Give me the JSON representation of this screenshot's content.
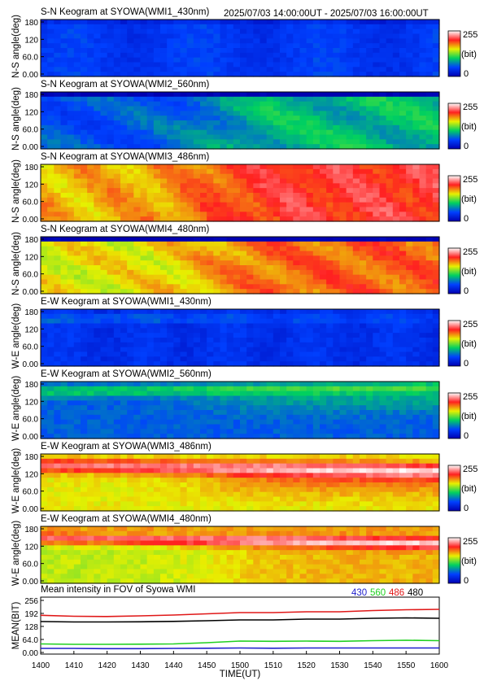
{
  "header": {
    "time_range": "2025/07/03 14:00:00UT - 2025/07/03 16:00:00UT"
  },
  "colorbar_labels": {
    "max": "255",
    "unit": "(bit)",
    "min": "0"
  },
  "keograms": [
    {
      "title": "S-N Keogram at SYOWA(WMI1_430nm)",
      "ylabel": "N-S angle(deg)",
      "yticks": [
        "180",
        "120",
        "60.0",
        "0.00"
      ]
    },
    {
      "title": "S-N Keogram at SYOWA(WMI2_560nm)",
      "ylabel": "N-S angle(deg)",
      "yticks": [
        "180",
        "120",
        "60.0",
        "0.00"
      ]
    },
    {
      "title": "S-N Keogram at SYOWA(WMI3_486nm)",
      "ylabel": "N-S angle(deg)",
      "yticks": [
        "180",
        "120",
        "60.0",
        "0.00"
      ]
    },
    {
      "title": "S-N Keogram at SYOWA(WMI4_480nm)",
      "ylabel": "N-S angle(deg)",
      "yticks": [
        "180",
        "120",
        "60.0",
        "0.00"
      ]
    },
    {
      "title": "E-W Keogram at SYOWA(WMI1_430nm)",
      "ylabel": "W-E angle(deg)",
      "yticks": [
        "180",
        "120",
        "60.0",
        "0.00"
      ]
    },
    {
      "title": "E-W Keogram at SYOWA(WMI2_560nm)",
      "ylabel": "W-E angle(deg)",
      "yticks": [
        "180",
        "120",
        "60.0",
        "0.00"
      ]
    },
    {
      "title": "E-W Keogram at SYOWA(WMI3_486nm)",
      "ylabel": "W-E angle(deg)",
      "yticks": [
        "180",
        "120",
        "60.0",
        "0.00"
      ]
    },
    {
      "title": "E-W Keogram at SYOWA(WMI4_480nm)",
      "ylabel": "W-E angle(deg)",
      "yticks": [
        "180",
        "120",
        "60.0",
        "0.00"
      ]
    }
  ],
  "chart_data": {
    "type": "line",
    "title": "Mean intensity in FOV of Syowa WMI",
    "xlabel": "TIME(UT)",
    "ylabel": "MEAN(BIT)",
    "x_ticks": [
      "1400",
      "1410",
      "1420",
      "1430",
      "1440",
      "1450",
      "1500",
      "1510",
      "1520",
      "1530",
      "1540",
      "1550",
      "1600"
    ],
    "y_ticks": [
      "256",
      "192",
      "128",
      "64.0",
      "0.00"
    ],
    "xlim": [
      0,
      120
    ],
    "ylim": [
      0,
      256
    ],
    "x": [
      0,
      10,
      20,
      30,
      40,
      50,
      60,
      70,
      80,
      90,
      100,
      110,
      120
    ],
    "series": [
      {
        "name": "430",
        "color": "#1e1ecc",
        "values": [
          20,
          20,
          19,
          19,
          20,
          21,
          22,
          21,
          22,
          22,
          22,
          22,
          22
        ]
      },
      {
        "name": "560",
        "color": "#20d020",
        "values": [
          42,
          40,
          40,
          41,
          42,
          48,
          56,
          55,
          56,
          55,
          58,
          60,
          58
        ]
      },
      {
        "name": "486",
        "color": "#e01818",
        "values": [
          183,
          178,
          177,
          180,
          184,
          190,
          196,
          196,
          200,
          200,
          206,
          210,
          212
        ]
      },
      {
        "name": "480",
        "color": "#000000",
        "values": [
          152,
          150,
          150,
          151,
          153,
          156,
          160,
          160,
          164,
          164,
          168,
          170,
          168
        ]
      }
    ]
  }
}
